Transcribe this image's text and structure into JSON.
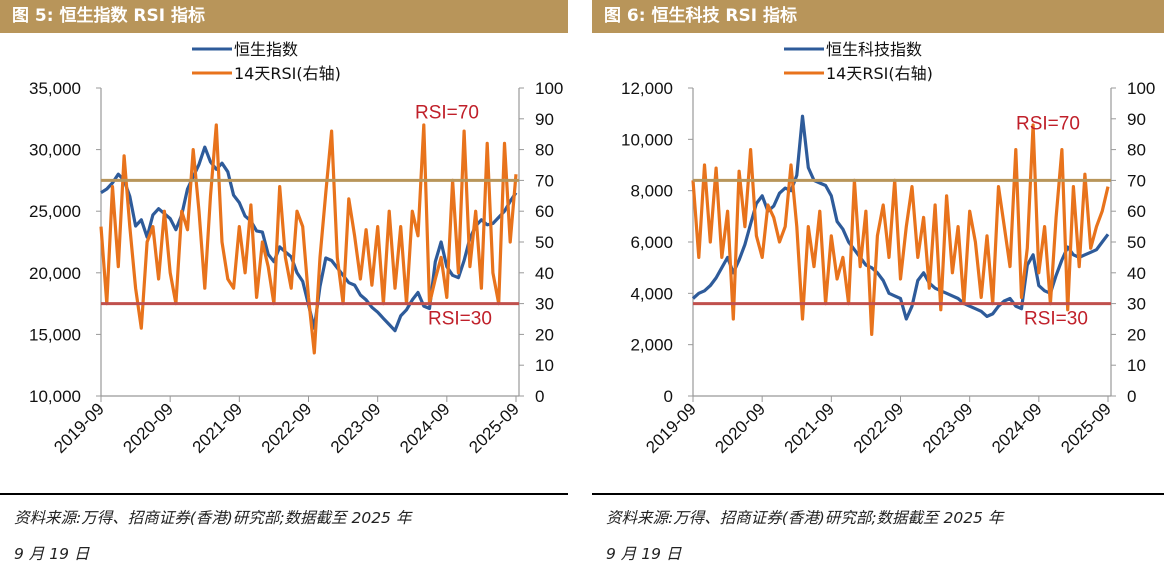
{
  "figures": [
    {
      "title": "图 5:  恒生指数 RSI 指标",
      "source_line1": "资料来源:万得、招商证券(香港)研究部;数据截至 2025 年",
      "source_line2": "9 月 19 日"
    },
    {
      "title": "图 6:  恒生科技 RSI 指标",
      "source_line1": "资料来源:万得、招商证券(香港)研究部;数据截至 2025 年",
      "source_line2": "9 月 19 日"
    }
  ],
  "colors": {
    "title_bar": "#b8955a",
    "index_line": "#2e5b9a",
    "rsi_line": "#e8731c",
    "rsi70_line": "#b8955a",
    "rsi30_line": "#c0504d",
    "ref_label": "#c0202a",
    "axis": "#999999"
  },
  "chart_data": [
    {
      "type": "line",
      "title": "恒生指数 RSI 指标",
      "x_tick_labels": [
        "2019-09",
        "2020-09",
        "2021-09",
        "2022-09",
        "2023-09",
        "2024-09",
        "2025-09"
      ],
      "x_start": "2019-09",
      "x_step": "monthly",
      "y_left": {
        "min": 10000,
        "max": 35000,
        "ticks": [
          "10,000",
          "15,000",
          "20,000",
          "25,000",
          "30,000",
          "35,000"
        ],
        "tick_values": [
          10000,
          15000,
          20000,
          25000,
          30000,
          35000
        ]
      },
      "y_right": {
        "min": 0,
        "max": 100,
        "ticks": [
          "0",
          "10",
          "20",
          "30",
          "40",
          "50",
          "60",
          "70",
          "80",
          "90",
          "100"
        ],
        "tick_values": [
          0,
          10,
          20,
          30,
          40,
          50,
          60,
          70,
          80,
          90,
          100
        ]
      },
      "legend": [
        "恒生指数",
        "14天RSI(右轴)"
      ],
      "reference_lines": [
        {
          "label": "RSI=70",
          "value": 70
        },
        {
          "label": "RSI=30",
          "value": 30
        }
      ],
      "series": [
        {
          "name": "恒生指数",
          "axis": "left",
          "values": [
            26500,
            26800,
            27300,
            28000,
            27500,
            26200,
            23800,
            24300,
            22900,
            24700,
            25200,
            24800,
            24400,
            23500,
            24700,
            26800,
            27800,
            28800,
            30200,
            29000,
            28400,
            28900,
            28200,
            26300,
            25700,
            24600,
            24200,
            23400,
            23300,
            21500,
            20900,
            22100,
            21700,
            21300,
            20000,
            19300,
            17400,
            15500,
            18900,
            21200,
            21000,
            20400,
            19800,
            19200,
            19000,
            18200,
            17800,
            17200,
            16800,
            16300,
            15800,
            15300,
            16500,
            17000,
            17800,
            18400,
            17300,
            17100,
            20900,
            22500,
            20500,
            19800,
            19600,
            21000,
            22800,
            23800,
            24300,
            23900,
            24000,
            24500,
            25000,
            25800,
            26500
          ]
        },
        {
          "name": "14天RSI(右轴)",
          "axis": "right",
          "values": [
            55,
            30,
            68,
            42,
            78,
            55,
            35,
            22,
            50,
            55,
            38,
            60,
            40,
            30,
            60,
            54,
            80,
            60,
            35,
            65,
            88,
            50,
            38,
            35,
            55,
            40,
            62,
            32,
            50,
            42,
            30,
            68,
            45,
            35,
            60,
            55,
            32,
            14,
            45,
            66,
            86,
            45,
            30,
            64,
            52,
            38,
            54,
            36,
            55,
            30,
            60,
            35,
            55,
            30,
            60,
            52,
            88,
            30,
            38,
            45,
            32,
            70,
            40,
            86,
            42,
            60,
            35,
            82,
            40,
            30,
            82,
            50,
            72
          ]
        }
      ]
    },
    {
      "type": "line",
      "title": "恒生科技 RSI 指标",
      "x_tick_labels": [
        "2019-09",
        "2020-09",
        "2021-09",
        "2022-09",
        "2023-09",
        "2024-09",
        "2025-09"
      ],
      "x_start": "2019-09",
      "x_step": "monthly",
      "y_left": {
        "min": 0,
        "max": 12000,
        "ticks": [
          "0",
          "2,000",
          "4,000",
          "6,000",
          "8,000",
          "10,000",
          "12,000"
        ],
        "tick_values": [
          0,
          2000,
          4000,
          6000,
          8000,
          10000,
          12000
        ]
      },
      "y_right": {
        "min": 0,
        "max": 100,
        "ticks": [
          "0",
          "10",
          "20",
          "30",
          "40",
          "50",
          "60",
          "70",
          "80",
          "90",
          "100"
        ],
        "tick_values": [
          0,
          10,
          20,
          30,
          40,
          50,
          60,
          70,
          80,
          90,
          100
        ]
      },
      "legend": [
        "恒生科技指数",
        "14天RSI(右轴)"
      ],
      "reference_lines": [
        {
          "label": "RSI=70",
          "value": 70
        },
        {
          "label": "RSI=30",
          "value": 30
        }
      ],
      "series": [
        {
          "name": "恒生科技指数",
          "axis": "left",
          "values": [
            3800,
            4000,
            4100,
            4300,
            4600,
            5000,
            5400,
            4800,
            5300,
            5900,
            6700,
            7500,
            7800,
            7200,
            7400,
            7900,
            8100,
            8000,
            8600,
            10900,
            8900,
            8400,
            8300,
            8200,
            7800,
            6800,
            6500,
            6000,
            5700,
            5400,
            5100,
            5000,
            4800,
            4500,
            4000,
            3900,
            3800,
            3000,
            3500,
            4500,
            4800,
            4400,
            4200,
            4100,
            4000,
            3900,
            3800,
            3600,
            3500,
            3400,
            3300,
            3100,
            3200,
            3500,
            3700,
            3800,
            3500,
            3400,
            5100,
            5500,
            4300,
            4100,
            4000,
            4700,
            5300,
            5800,
            5500,
            5400,
            5500,
            5600,
            5700,
            6000,
            6300
          ]
        },
        {
          "name": "14天RSI(右轴)",
          "axis": "right",
          "values": [
            70,
            45,
            75,
            50,
            74,
            45,
            60,
            25,
            73,
            55,
            80,
            52,
            45,
            62,
            58,
            50,
            55,
            75,
            55,
            25,
            55,
            42,
            60,
            30,
            52,
            38,
            45,
            30,
            70,
            42,
            60,
            20,
            52,
            62,
            45,
            70,
            38,
            55,
            68,
            45,
            58,
            35,
            62,
            28,
            65,
            40,
            55,
            30,
            60,
            50,
            32,
            52,
            30,
            68,
            55,
            42,
            80,
            32,
            48,
            88,
            40,
            55,
            30,
            58,
            80,
            28,
            68,
            42,
            72,
            48,
            55,
            60,
            68
          ]
        }
      ]
    }
  ]
}
